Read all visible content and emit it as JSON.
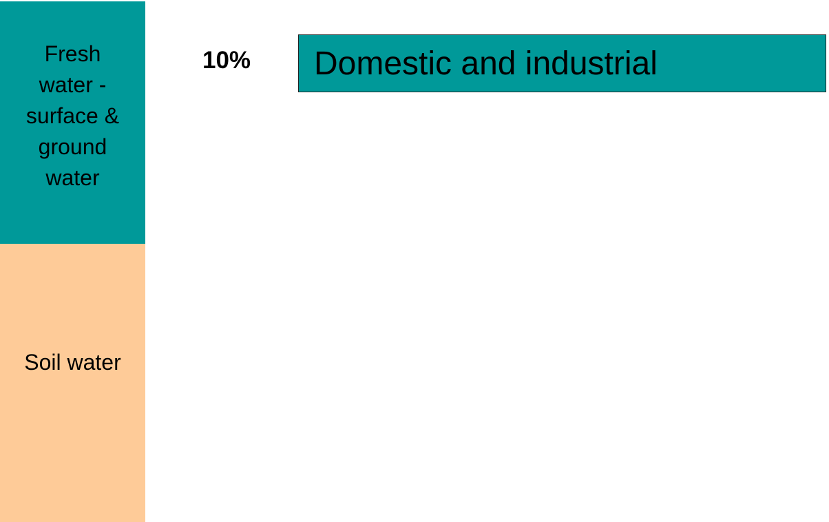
{
  "sources": [
    {
      "label": "Fresh water - surface & ground water"
    },
    {
      "label": "Soil water"
    }
  ],
  "uses": [
    {
      "share": "10%",
      "label": "Domestic and industrial"
    }
  ]
}
